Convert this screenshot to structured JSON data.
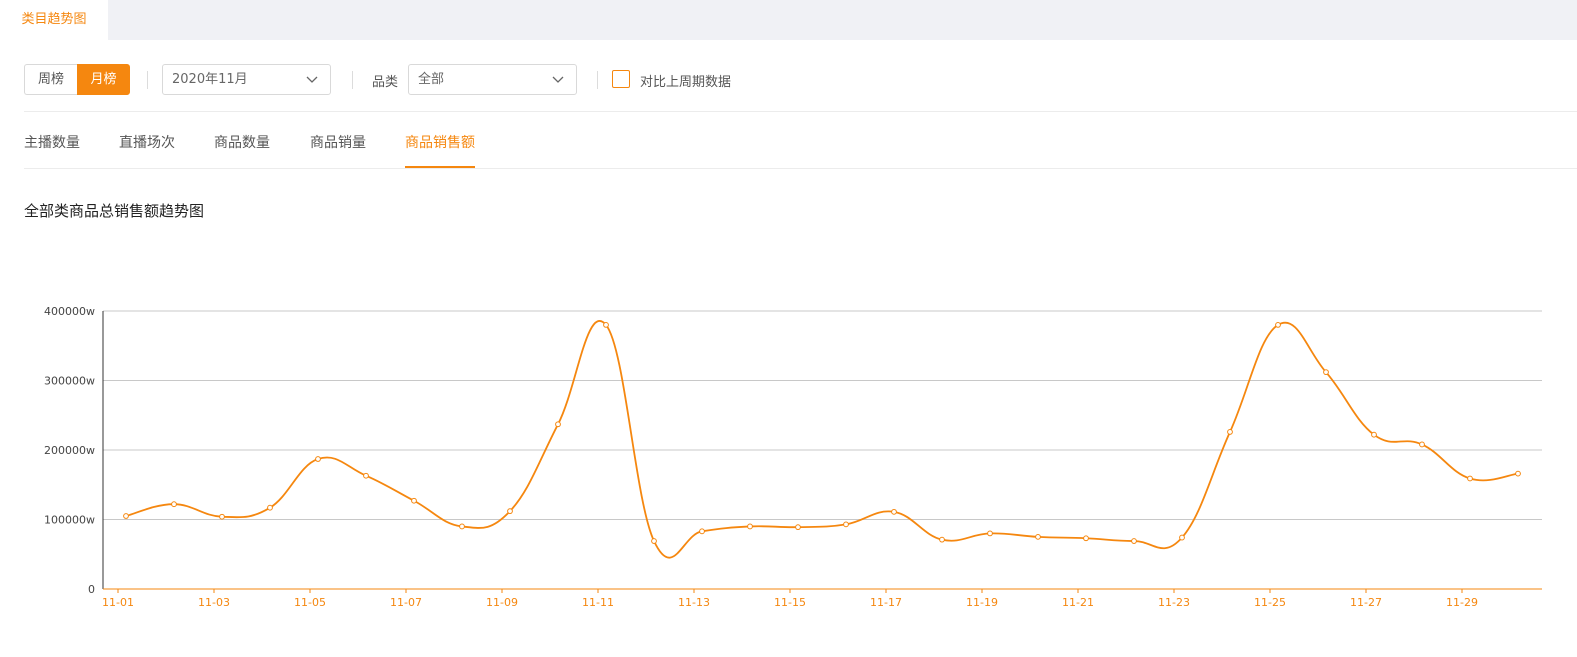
{
  "header": {
    "tab_label": "类目趋势图"
  },
  "filters": {
    "period_options": [
      "周榜",
      "月榜"
    ],
    "period_selected": "月榜",
    "month_value": "2020年11月",
    "category_label": "品类",
    "category_value": "全部",
    "compare_label": "对比上周期数据",
    "compare_checked": false
  },
  "metric_tabs": [
    "主播数量",
    "直播场次",
    "商品数量",
    "商品销量",
    "商品销售额"
  ],
  "active_metric": "商品销售额",
  "colors": {
    "accent": "#f5870f",
    "grid": "#c8c8c8",
    "background_strip": "#f0f1f5"
  },
  "chart_data": {
    "type": "line",
    "title": "全部类商品总销售额趋势图",
    "xlabel": "",
    "ylabel": "",
    "x": [
      "11-01",
      "11-02",
      "11-03",
      "11-04",
      "11-05",
      "11-06",
      "11-07",
      "11-08",
      "11-09",
      "11-10",
      "11-11",
      "11-12",
      "11-13",
      "11-14",
      "11-15",
      "11-16",
      "11-17",
      "11-18",
      "11-19",
      "11-20",
      "11-21",
      "11-22",
      "11-23",
      "11-24",
      "11-25",
      "11-26",
      "11-27",
      "11-28",
      "11-29",
      "11-30"
    ],
    "x_tick_labels": [
      "11-01",
      "11-03",
      "11-05",
      "11-07",
      "11-09",
      "11-11",
      "11-13",
      "11-15",
      "11-17",
      "11-19",
      "11-21",
      "11-23",
      "11-25",
      "11-27",
      "11-29"
    ],
    "series": [
      {
        "name": "",
        "values": [
          105000,
          122000,
          104000,
          117000,
          187000,
          163000,
          127000,
          90000,
          112000,
          237000,
          380000,
          69000,
          83000,
          90000,
          89000,
          93000,
          111000,
          71000,
          80000,
          75000,
          73000,
          69000,
          74000,
          226000,
          380000,
          312000,
          222000,
          208000,
          159000,
          166000
        ]
      }
    ],
    "y_tick_labels": [
      "0",
      "100000w",
      "200000w",
      "300000w",
      "400000w"
    ],
    "y_ticks": [
      0,
      100000,
      200000,
      300000,
      400000
    ],
    "ylim": [
      0,
      400000
    ],
    "grid": true,
    "color": "#f5870f"
  }
}
